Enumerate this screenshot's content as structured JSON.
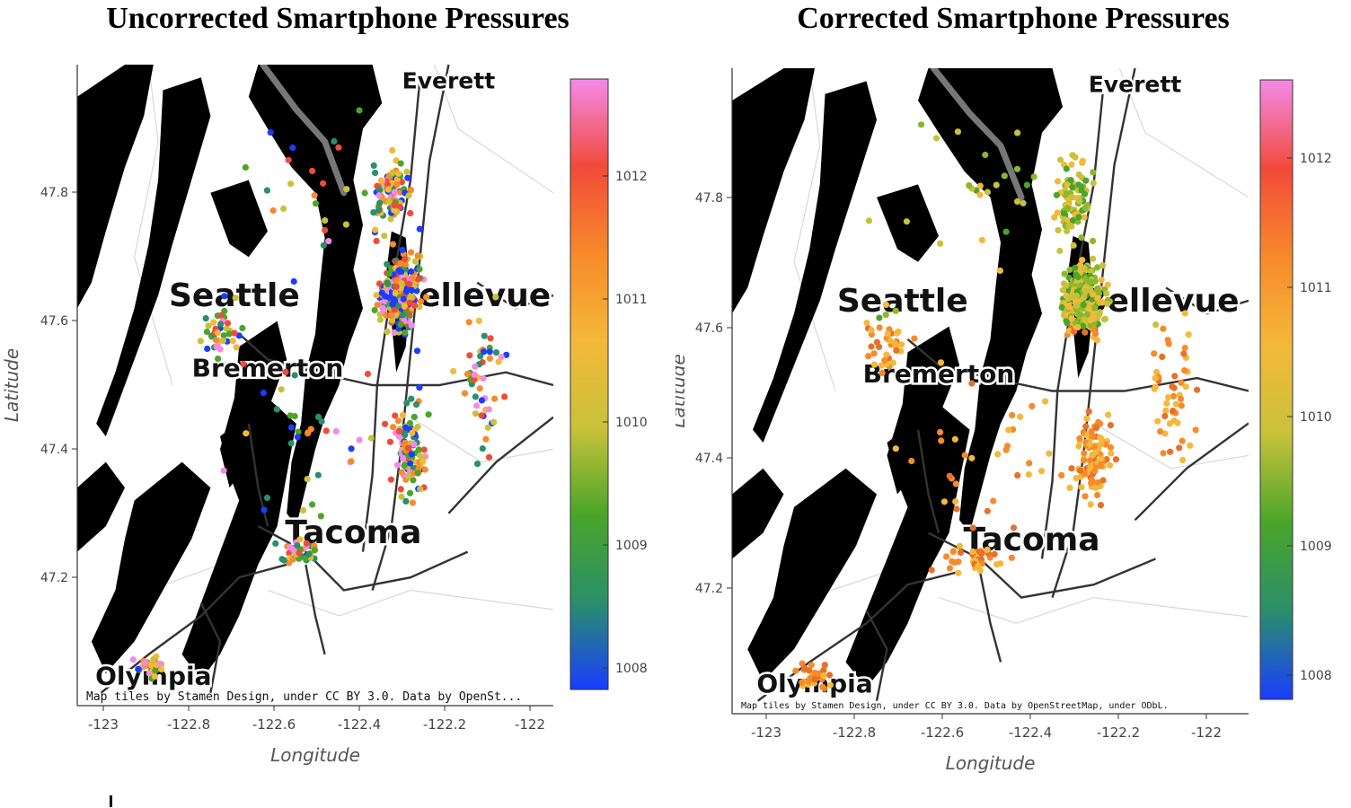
{
  "panels": [
    {
      "title": "Uncorrected Smartphone Pressures",
      "xlabel": "Longitude",
      "ylabel": "Latitude",
      "attribution": "Map tiles by Stamen Design, under CC BY 3.0. Data by OpenSt...",
      "x_ticks": [
        "-123",
        "-122.8",
        "-122.6",
        "-122.4",
        "-122.2",
        "-122"
      ],
      "y_ticks": [
        "47.8",
        "47.6",
        "47.4",
        "47.2"
      ],
      "colorbar_ticks": [
        "1012",
        "1011",
        "1010",
        "1009",
        "1008"
      ],
      "city_labels": [
        "Everett",
        "Seattle",
        "Bellevue",
        "Bremerton",
        "Tacoma",
        "Olympia"
      ],
      "colormap": "rainbow"
    },
    {
      "title": "Corrected Smartphone Pressures",
      "xlabel": "Longitude",
      "ylabel": "Latitude",
      "attribution": "Map tiles by Stamen Design, under CC BY 3.0. Data by OpenStreetMap, under ODbL.",
      "x_ticks": [
        "-123",
        "-122.8",
        "-122.6",
        "-122.4",
        "-122.2",
        "-122"
      ],
      "y_ticks": [
        "47.8",
        "47.6",
        "47.4",
        "47.2"
      ],
      "colorbar_ticks": [
        "1012",
        "1011",
        "1010",
        "1009",
        "1008"
      ],
      "city_labels": [
        "Everett",
        "Seattle",
        "Bellevue",
        "Bremerton",
        "Tacoma",
        "Olympia"
      ],
      "colormap": "rainbow"
    }
  ],
  "colors": {
    "water": "#000000",
    "land": "#ffffff",
    "roads": "#333333",
    "cmap_stops": [
      "#1a3dff",
      "#2a8f6a",
      "#4aa52a",
      "#c8c23a",
      "#f4b83a",
      "#f78a2a",
      "#f24a3a",
      "#f48ae8"
    ]
  }
}
